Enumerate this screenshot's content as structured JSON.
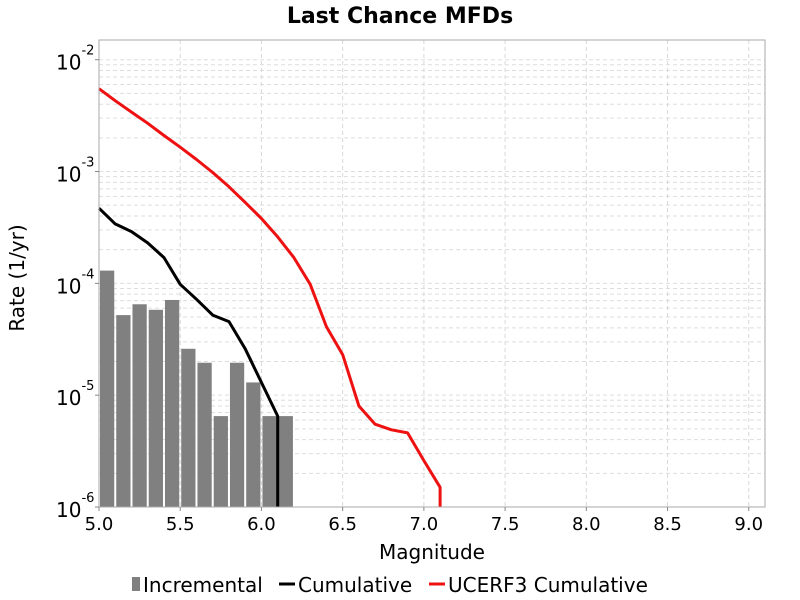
{
  "chart_data": {
    "type": "bar",
    "title": "Last Chance MFDs",
    "xlabel": "Magnitude",
    "ylabel": "Rate (1/yr)",
    "xlim": [
      5.0,
      9.1
    ],
    "ylim": [
      1e-06,
      0.015
    ],
    "yscale": "log",
    "grid": true,
    "legend_position": "bottom",
    "x_ticks": [
      "5.0",
      "5.5",
      "6.0",
      "6.5",
      "7.0",
      "7.5",
      "8.0",
      "8.5",
      "9.0"
    ],
    "x_tick_values": [
      5.0,
      5.5,
      6.0,
      6.5,
      7.0,
      7.5,
      8.0,
      8.5,
      9.0
    ],
    "y_ticks": [
      {
        "value": 1e-06,
        "base": "10",
        "exp": "-6"
      },
      {
        "value": 1e-05,
        "base": "10",
        "exp": "-5"
      },
      {
        "value": 0.0001,
        "base": "10",
        "exp": "-4"
      },
      {
        "value": 0.001,
        "base": "10",
        "exp": "-3"
      },
      {
        "value": 0.01,
        "base": "10",
        "exp": "-2"
      }
    ],
    "series": [
      {
        "name": "Incremental",
        "kind": "bar",
        "color": "#808080",
        "bar_width": 0.1,
        "x": [
          5.05,
          5.15,
          5.25,
          5.35,
          5.45,
          5.55,
          5.65,
          5.75,
          5.85,
          5.95,
          6.05,
          6.15
        ],
        "values": [
          0.00013,
          5.2e-05,
          6.5e-05,
          5.8e-05,
          7.1e-05,
          2.6e-05,
          1.95e-05,
          6.5e-06,
          1.95e-05,
          1.3e-05,
          6.5e-06,
          6.5e-06
        ]
      },
      {
        "name": "Cumulative",
        "kind": "line",
        "color": "#000000",
        "x": [
          5.0,
          5.1,
          5.2,
          5.3,
          5.4,
          5.5,
          5.6,
          5.7,
          5.8,
          5.9,
          6.0,
          6.1,
          6.1
        ],
        "values": [
          0.00047,
          0.00034,
          0.00029,
          0.00023,
          0.00017,
          9.8e-05,
          7.2e-05,
          5.2e-05,
          4.55e-05,
          2.6e-05,
          1.3e-05,
          6.5e-06,
          1e-06
        ]
      },
      {
        "name": "UCERF3 Cumulative",
        "kind": "line",
        "color": "#ee1111",
        "x": [
          5.0,
          5.1,
          5.2,
          5.3,
          5.4,
          5.5,
          5.6,
          5.7,
          5.8,
          5.9,
          6.0,
          6.1,
          6.2,
          6.3,
          6.4,
          6.5,
          6.6,
          6.7,
          6.8,
          6.9,
          7.0,
          7.1,
          7.1
        ],
        "values": [
          0.0055,
          0.0043,
          0.0034,
          0.0027,
          0.0021,
          0.00165,
          0.00128,
          0.00098,
          0.00073,
          0.00053,
          0.00038,
          0.00026,
          0.00017,
          9.8e-05,
          4.1e-05,
          2.3e-05,
          8e-06,
          5.5e-06,
          4.9e-06,
          4.6e-06,
          2.6e-06,
          1.5e-06,
          1e-06
        ]
      }
    ]
  }
}
